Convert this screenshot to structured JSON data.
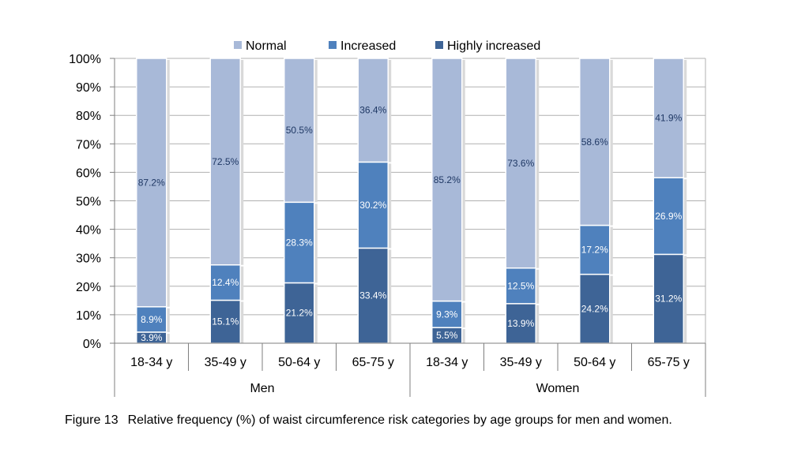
{
  "chart_data": {
    "type": "bar",
    "stacked": true,
    "title": "",
    "ylabel": "",
    "xlabel": "",
    "ylim": [
      0,
      100
    ],
    "y_ticks": [
      "0%",
      "10%",
      "20%",
      "30%",
      "40%",
      "50%",
      "60%",
      "70%",
      "80%",
      "90%",
      "100%"
    ],
    "categories": [
      "18-34 y",
      "35-49 y",
      "50-64 y",
      "65-75 y",
      "18-34 y",
      "35-49 y",
      "50-64 y",
      "65-75 y"
    ],
    "groups": [
      {
        "name": "Men",
        "span": 4
      },
      {
        "name": "Women",
        "span": 4
      }
    ],
    "series": [
      {
        "name": "Highly increased",
        "color": "#3e6496",
        "label_color": "#ffffff",
        "values": [
          3.9,
          15.1,
          21.2,
          33.4,
          5.5,
          13.9,
          24.2,
          31.2
        ],
        "labels": [
          "3.9%",
          "15.1%",
          "21.2%",
          "33.4%",
          "5.5%",
          "13.9%",
          "24.2%",
          "31.2%"
        ]
      },
      {
        "name": "Increased",
        "color": "#4f81bd",
        "label_color": "#ffffff",
        "values": [
          8.9,
          12.4,
          28.3,
          30.2,
          9.3,
          12.5,
          17.2,
          26.9
        ],
        "labels": [
          "8.9%",
          "12.4%",
          "28.3%",
          "30.2%",
          "9.3%",
          "12.5%",
          "17.2%",
          "26.9%"
        ]
      },
      {
        "name": "Normal",
        "color": "#a8b9d8",
        "label_color": "#1f3864",
        "values": [
          87.2,
          72.5,
          50.5,
          36.4,
          85.2,
          73.6,
          58.6,
          41.9
        ],
        "labels": [
          "87.2%",
          "72.5%",
          "50.5%",
          "36.4%",
          "85.2%",
          "73.6%",
          "58.6%",
          "41.9%"
        ]
      }
    ],
    "legend": {
      "position": "top",
      "order": [
        "Normal",
        "Increased",
        "Highly increased"
      ]
    },
    "grid": true
  },
  "caption": {
    "number": "Figure 13",
    "text": "Relative frequency (%) of waist circumference risk categories by age groups for men and women."
  }
}
